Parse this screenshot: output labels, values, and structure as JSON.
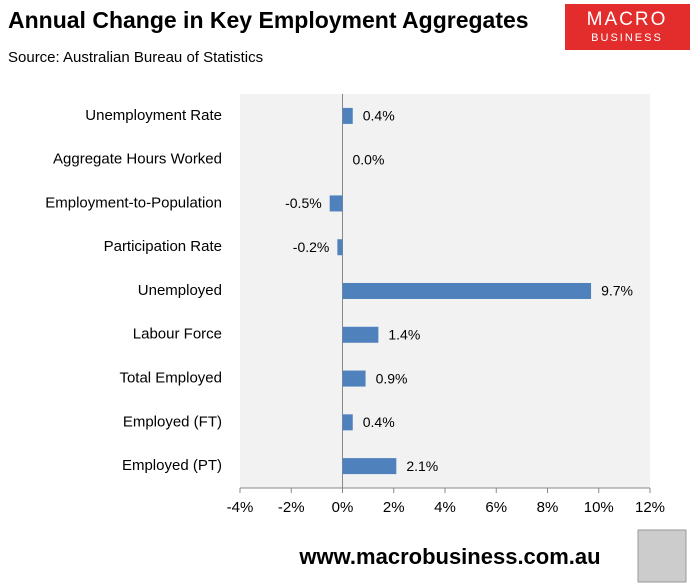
{
  "chart_data": {
    "type": "bar",
    "orientation": "horizontal",
    "title": "Annual Change in Key Employment Aggregates",
    "subtitle": "Source: Australian Bureau of Statistics",
    "logo": [
      "MACRO",
      "BUSINESS"
    ],
    "footer": "www.macrobusiness.com.au",
    "categories": [
      "Unemployment Rate",
      "Aggregate Hours Worked",
      "Employment-to-Population",
      "Participation Rate",
      "Unemployed",
      "Labour Force",
      "Total Employed",
      "Employed (FT)",
      "Employed (PT)"
    ],
    "values": [
      0.4,
      0.0,
      -0.5,
      -0.2,
      9.7,
      1.4,
      0.9,
      0.4,
      2.1
    ],
    "value_labels": [
      "0.4%",
      "0.0%",
      "-0.5%",
      "-0.2%",
      "9.7%",
      "1.4%",
      "0.9%",
      "0.4%",
      "2.1%"
    ],
    "color": "#4f81bd",
    "xlim": [
      -4,
      12
    ],
    "xticks": [
      {
        "value": -4,
        "label": "-4%"
      },
      {
        "value": -2,
        "label": "-2%"
      },
      {
        "value": 0,
        "label": "0%"
      },
      {
        "value": 2,
        "label": "2%"
      },
      {
        "value": 4,
        "label": "4%"
      },
      {
        "value": 6,
        "label": "6%"
      },
      {
        "value": 8,
        "label": "8%"
      },
      {
        "value": 10,
        "label": "10%"
      },
      {
        "value": 12,
        "label": "12%"
      }
    ],
    "grid": false
  }
}
